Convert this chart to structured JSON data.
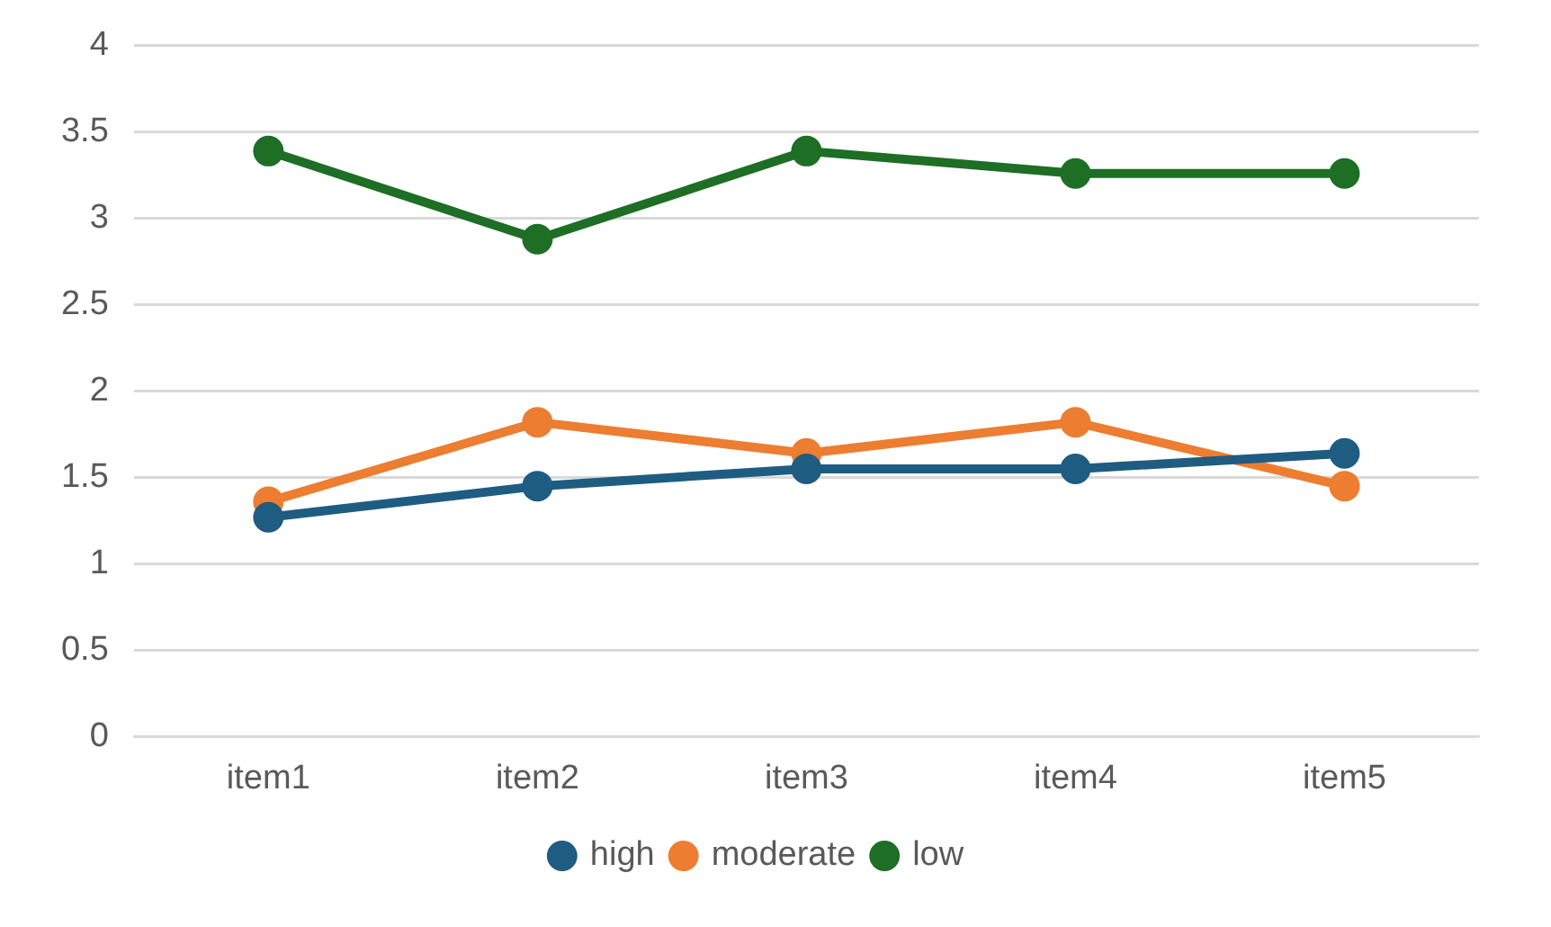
{
  "chart_data": {
    "type": "line",
    "categories": [
      "item1",
      "item2",
      "item3",
      "item4",
      "item5"
    ],
    "series": [
      {
        "name": "high",
        "color": "#1f5c82",
        "values": [
          1.27,
          1.45,
          1.55,
          1.55,
          1.64
        ]
      },
      {
        "name": "moderate",
        "color": "#ed7d31",
        "values": [
          1.36,
          1.82,
          1.64,
          1.82,
          1.45
        ]
      },
      {
        "name": "low",
        "color": "#1e6e26",
        "values": [
          3.39,
          2.88,
          3.39,
          3.26,
          3.26
        ]
      }
    ],
    "ylim": [
      0,
      4
    ],
    "yticks": [
      0,
      0.5,
      1,
      1.5,
      2,
      2.5,
      3,
      3.5,
      4
    ],
    "grid": "y",
    "legend": "bottom",
    "marker": "circle",
    "line_style": "solid"
  }
}
